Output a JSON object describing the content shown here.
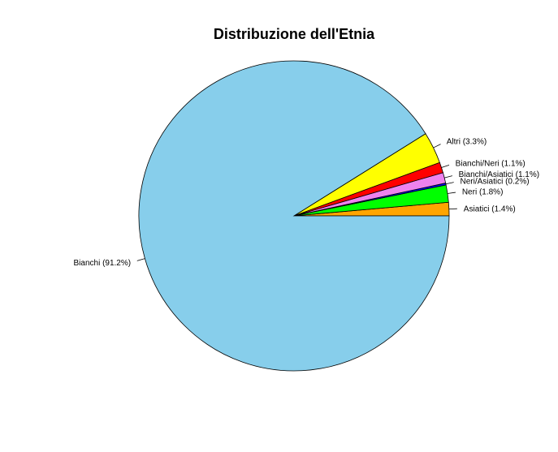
{
  "chart_data": {
    "type": "pie",
    "title": "Distribuzione dell'Etnia",
    "slices": [
      {
        "name": "Asiatici",
        "value": 1.4,
        "label": "Asiatici (1.4%)",
        "color": "#FFA500"
      },
      {
        "name": "Neri",
        "value": 1.8,
        "label": "Neri (1.8%)",
        "color": "#00FF00"
      },
      {
        "name": "Neri/Asiatici",
        "value": 0.2,
        "label": "Neri/Asiatici (0.2%)",
        "color": "#0000FF"
      },
      {
        "name": "Bianchi/Asiatici",
        "value": 1.1,
        "label": "Bianchi/Asiatici (1.1%)",
        "color": "#EE82EE"
      },
      {
        "name": "Bianchi/Neri",
        "value": 1.1,
        "label": "Bianchi/Neri (1.1%)",
        "color": "#FF0000"
      },
      {
        "name": "Altri",
        "value": 3.3,
        "label": "Altri (3.3%)",
        "color": "#FFFF00"
      },
      {
        "name": "Bianchi",
        "value": 91.2,
        "label": "Bianchi (91.2%)",
        "color": "#87CEEB"
      }
    ],
    "start": "3 o'clock",
    "direction": "counterclockwise",
    "legend": "none",
    "slice_border_color": "#000000"
  }
}
